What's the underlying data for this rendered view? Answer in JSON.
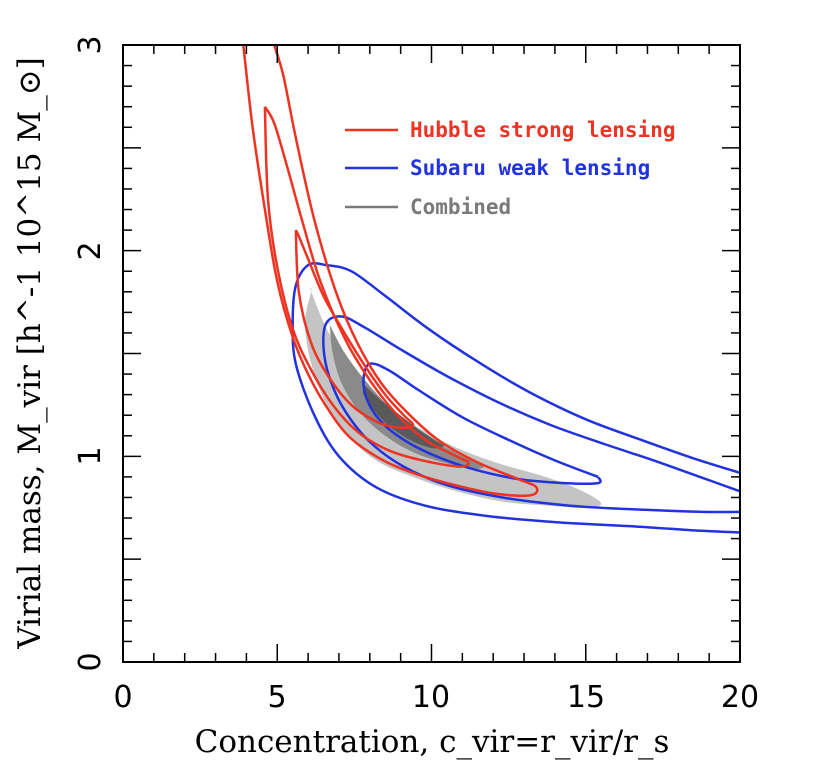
{
  "chart_data": {
    "type": "line",
    "xlabel": "Concentration, c_vir=r_vir/r_s",
    "ylabel": "Virial mass, M_vir [h^-1 10^15 M_⊙]",
    "xlim": [
      0,
      20
    ],
    "ylim": [
      0,
      3
    ],
    "x_ticks": [
      0,
      5,
      10,
      15,
      20
    ],
    "y_ticks": [
      0,
      1,
      2,
      3
    ],
    "x_tick_labels": [
      "0",
      "5",
      "10",
      "15",
      "20"
    ],
    "y_tick_labels": [
      "0",
      "1",
      "2",
      "3"
    ],
    "legend_position": "top-right",
    "colors": {
      "hubble": "#ee3322",
      "subaru": "#2233dd",
      "combined": "#7a7a7a",
      "combined_outer": "#c4c4c4",
      "combined_inner": "#8a8a8a",
      "combined_core": "#5a5a5a"
    },
    "series": [
      {
        "name": "Hubble strong lensing",
        "color": "#ee3322",
        "contours": [
          {
            "level": "outer",
            "points": [
              [
                3.9,
                3.0
              ],
              [
                4.2,
                2.6
              ],
              [
                4.6,
                2.2
              ],
              [
                5.0,
                1.85
              ],
              [
                5.5,
                1.58
              ],
              [
                6.0,
                1.4
              ],
              [
                6.6,
                1.24
              ],
              [
                7.3,
                1.1
              ],
              [
                8.2,
                1.0
              ],
              [
                9.2,
                0.93
              ],
              [
                10.5,
                0.87
              ],
              [
                12.0,
                0.82
              ],
              [
                13.2,
                0.81
              ],
              [
                13.4,
                0.85
              ],
              [
                12.8,
                0.89
              ],
              [
                11.5,
                0.97
              ],
              [
                10.3,
                1.07
              ],
              [
                9.3,
                1.2
              ],
              [
                8.4,
                1.35
              ],
              [
                7.6,
                1.55
              ],
              [
                6.9,
                1.8
              ],
              [
                6.2,
                2.15
              ],
              [
                5.6,
                2.55
              ],
              [
                5.2,
                2.85
              ],
              [
                4.9,
                3.0
              ]
            ]
          },
          {
            "level": "middle",
            "points": [
              [
                4.6,
                2.7
              ],
              [
                4.7,
                2.25
              ],
              [
                5.0,
                1.92
              ],
              [
                5.5,
                1.62
              ],
              [
                6.1,
                1.42
              ],
              [
                6.8,
                1.25
              ],
              [
                7.6,
                1.12
              ],
              [
                8.6,
                1.03
              ],
              [
                9.7,
                0.98
              ],
              [
                10.9,
                0.95
              ],
              [
                11.2,
                0.97
              ],
              [
                10.8,
                1.0
              ],
              [
                9.8,
                1.08
              ],
              [
                8.9,
                1.2
              ],
              [
                8.0,
                1.37
              ],
              [
                7.2,
                1.57
              ],
              [
                6.4,
                1.85
              ],
              [
                5.8,
                2.15
              ],
              [
                5.3,
                2.42
              ],
              [
                4.9,
                2.62
              ],
              [
                4.6,
                2.7
              ]
            ]
          },
          {
            "level": "inner",
            "points": [
              [
                5.6,
                2.1
              ],
              [
                5.7,
                1.8
              ],
              [
                6.1,
                1.55
              ],
              [
                6.7,
                1.38
              ],
              [
                7.4,
                1.25
              ],
              [
                8.2,
                1.17
              ],
              [
                8.9,
                1.14
              ],
              [
                9.4,
                1.15
              ],
              [
                9.1,
                1.2
              ],
              [
                8.5,
                1.3
              ],
              [
                7.8,
                1.45
              ],
              [
                7.1,
                1.62
              ],
              [
                6.5,
                1.78
              ],
              [
                6.0,
                1.96
              ],
              [
                5.7,
                2.07
              ],
              [
                5.6,
                2.1
              ]
            ]
          }
        ]
      },
      {
        "name": "Subaru weak lensing",
        "color": "#2233dd",
        "contours": [
          {
            "level": "outer",
            "points": [
              [
                20.0,
                0.92
              ],
              [
                18.5,
                0.99
              ],
              [
                16.8,
                1.08
              ],
              [
                15.0,
                1.18
              ],
              [
                13.2,
                1.31
              ],
              [
                11.5,
                1.46
              ],
              [
                9.9,
                1.62
              ],
              [
                8.5,
                1.78
              ],
              [
                7.4,
                1.9
              ],
              [
                6.6,
                1.93
              ],
              [
                6.0,
                1.93
              ],
              [
                5.6,
                1.83
              ],
              [
                5.5,
                1.65
              ],
              [
                5.6,
                1.45
              ],
              [
                6.2,
                1.2
              ],
              [
                7.0,
                1.0
              ],
              [
                8.2,
                0.85
              ],
              [
                9.8,
                0.76
              ],
              [
                11.8,
                0.71
              ],
              [
                14.0,
                0.68
              ],
              [
                16.5,
                0.66
              ],
              [
                18.5,
                0.64
              ],
              [
                20.0,
                0.63
              ]
            ]
          },
          {
            "level": "middle",
            "points": [
              [
                20.0,
                0.83
              ],
              [
                18.7,
                0.9
              ],
              [
                17.2,
                0.98
              ],
              [
                15.6,
                1.06
              ],
              [
                13.9,
                1.15
              ],
              [
                12.2,
                1.26
              ],
              [
                10.5,
                1.39
              ],
              [
                9.0,
                1.52
              ],
              [
                7.8,
                1.63
              ],
              [
                7.1,
                1.68
              ],
              [
                6.6,
                1.65
              ],
              [
                6.5,
                1.53
              ],
              [
                6.7,
                1.38
              ],
              [
                7.2,
                1.22
              ],
              [
                8.0,
                1.07
              ],
              [
                9.1,
                0.95
              ],
              [
                10.5,
                0.86
              ],
              [
                12.3,
                0.8
              ],
              [
                14.5,
                0.76
              ],
              [
                16.9,
                0.74
              ],
              [
                18.8,
                0.73
              ],
              [
                20.0,
                0.73
              ]
            ]
          },
          {
            "level": "inner",
            "points": [
              [
                15.4,
                0.9
              ],
              [
                14.0,
                0.98
              ],
              [
                12.5,
                1.08
              ],
              [
                11.0,
                1.19
              ],
              [
                9.6,
                1.32
              ],
              [
                8.6,
                1.42
              ],
              [
                8.0,
                1.45
              ],
              [
                7.8,
                1.38
              ],
              [
                7.9,
                1.28
              ],
              [
                8.3,
                1.18
              ],
              [
                9.0,
                1.09
              ],
              [
                10.0,
                1.01
              ],
              [
                11.3,
                0.94
              ],
              [
                12.8,
                0.89
              ],
              [
                14.3,
                0.87
              ],
              [
                15.4,
                0.87
              ],
              [
                15.4,
                0.9
              ]
            ]
          }
        ]
      },
      {
        "name": "Combined",
        "color": "#7a7a7a",
        "filled": true,
        "contours": [
          {
            "level": "outer",
            "fill": "#c4c4c4",
            "points": [
              [
                6.1,
                1.8
              ],
              [
                6.6,
                1.62
              ],
              [
                7.2,
                1.48
              ],
              [
                7.9,
                1.35
              ],
              [
                8.8,
                1.22
              ],
              [
                9.8,
                1.12
              ],
              [
                11.0,
                1.03
              ],
              [
                12.3,
                0.96
              ],
              [
                13.7,
                0.9
              ],
              [
                14.9,
                0.83
              ],
              [
                15.5,
                0.77
              ],
              [
                15.0,
                0.75
              ],
              [
                13.8,
                0.76
              ],
              [
                12.3,
                0.78
              ],
              [
                10.8,
                0.83
              ],
              [
                9.4,
                0.9
              ],
              [
                8.2,
                0.98
              ],
              [
                7.3,
                1.1
              ],
              [
                6.6,
                1.25
              ],
              [
                6.1,
                1.45
              ],
              [
                5.9,
                1.65
              ],
              [
                6.1,
                1.8
              ]
            ]
          },
          {
            "level": "middle",
            "fill": "#8a8a8a",
            "points": [
              [
                6.7,
                1.64
              ],
              [
                7.2,
                1.5
              ],
              [
                7.9,
                1.36
              ],
              [
                8.7,
                1.23
              ],
              [
                9.6,
                1.12
              ],
              [
                10.5,
                1.04
              ],
              [
                11.3,
                0.98
              ],
              [
                11.7,
                0.95
              ],
              [
                11.3,
                0.94
              ],
              [
                10.4,
                0.97
              ],
              [
                9.4,
                1.02
              ],
              [
                8.5,
                1.1
              ],
              [
                7.7,
                1.21
              ],
              [
                7.1,
                1.35
              ],
              [
                6.8,
                1.5
              ],
              [
                6.7,
                1.64
              ]
            ]
          },
          {
            "level": "inner",
            "fill": "#5a5a5a",
            "points": [
              [
                7.8,
                1.35
              ],
              [
                8.3,
                1.28
              ],
              [
                8.9,
                1.21
              ],
              [
                9.5,
                1.14
              ],
              [
                10.1,
                1.08
              ],
              [
                10.4,
                1.05
              ],
              [
                10.0,
                1.04
              ],
              [
                9.3,
                1.08
              ],
              [
                8.6,
                1.15
              ],
              [
                8.1,
                1.23
              ],
              [
                7.8,
                1.3
              ],
              [
                7.8,
                1.35
              ]
            ]
          }
        ]
      }
    ]
  }
}
